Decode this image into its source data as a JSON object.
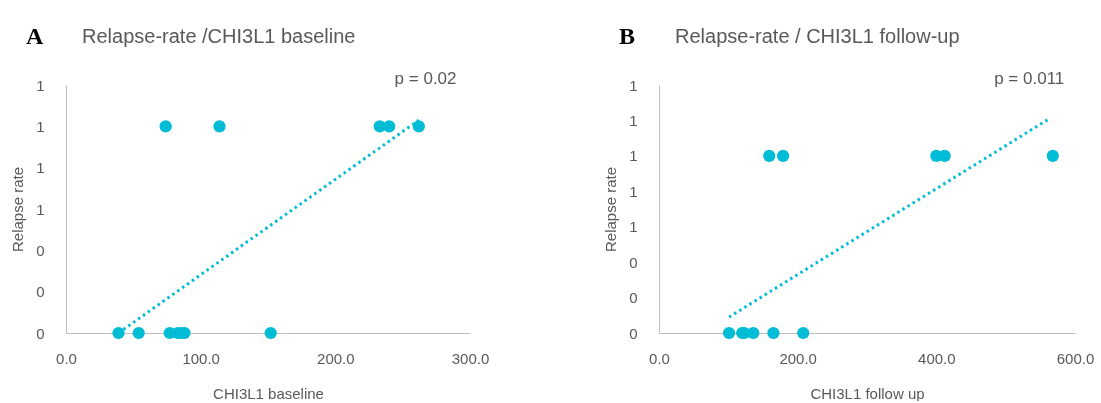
{
  "chart_data": [
    {
      "type": "scatter",
      "title": "Relapse-rate /CHI3L1 baseline",
      "xlabel": "CHI3L1 baseline",
      "ylabel": "Relapse rate",
      "annotations": [
        "A",
        "p = 0.02"
      ],
      "series": [
        {
          "type": "scatter",
          "color": "#00bcd4",
          "marker": "circle",
          "x": [
            39,
            54,
            77,
            83,
            86,
            88,
            152,
            74,
            114,
            233,
            240,
            262
          ],
          "values": [
            0,
            0,
            0,
            0,
            0,
            0,
            0,
            1,
            1,
            1,
            1,
            1
          ]
        },
        {
          "type": "line",
          "color": "#00bcd4",
          "marker": "none",
          "line_style": "dotted",
          "x": [
            39,
            262
          ],
          "values": [
            0,
            1.03
          ]
        }
      ],
      "xlim": [
        0,
        300
      ],
      "xticks": [
        {
          "value": 0,
          "label": "0.0"
        },
        {
          "value": 100,
          "label": "100.0"
        },
        {
          "value": 200,
          "label": "200.0"
        },
        {
          "value": 300,
          "label": "300.0"
        }
      ],
      "ylim": [
        0,
        1.2
      ],
      "yticks": [
        {
          "value": 0,
          "label": "0"
        },
        {
          "value": 0.2,
          "label": "0"
        },
        {
          "value": 0.4,
          "label": "0"
        },
        {
          "value": 0.6,
          "label": "1"
        },
        {
          "value": 0.8,
          "label": "1"
        },
        {
          "value": 1,
          "label": "1"
        },
        {
          "value": 1.2,
          "label": "1"
        }
      ],
      "grid": false,
      "legend": false
    },
    {
      "type": "scatter",
      "title": "Relapse-rate / CHI3L1 follow-up",
      "xlabel": "CHI3L1 follow up",
      "ylabel": "Relapse rate",
      "annotations": [
        "B",
        "p = 0.011"
      ],
      "series": [
        {
          "type": "scatter",
          "color": "#00bcd4",
          "marker": "circle",
          "x": [
            101,
            120,
            123,
            136,
            165,
            208,
            159,
            179,
            400,
            412,
            568
          ],
          "values": [
            0,
            0,
            0,
            0,
            0,
            0,
            1,
            1,
            1,
            1,
            1
          ]
        },
        {
          "type": "line",
          "color": "#00bcd4",
          "marker": "none",
          "line_style": "dotted",
          "x": [
            101,
            563
          ],
          "values": [
            0.09,
            1.21
          ]
        }
      ],
      "xlim": [
        0,
        600
      ],
      "xticks": [
        {
          "value": 0,
          "label": "0.0"
        },
        {
          "value": 200,
          "label": "200.0"
        },
        {
          "value": 400,
          "label": "400.0"
        },
        {
          "value": 600,
          "label": "600.0"
        }
      ],
      "ylim": [
        0,
        1.4
      ],
      "yticks": [
        {
          "value": 0,
          "label": "0"
        },
        {
          "value": 0.2,
          "label": "0"
        },
        {
          "value": 0.4,
          "label": "0"
        },
        {
          "value": 0.6,
          "label": "1"
        },
        {
          "value": 0.8,
          "label": "1"
        },
        {
          "value": 1,
          "label": "1"
        },
        {
          "value": 1.2,
          "label": "1"
        },
        {
          "value": 1.4,
          "label": "1"
        }
      ],
      "grid": false,
      "legend": false
    }
  ]
}
